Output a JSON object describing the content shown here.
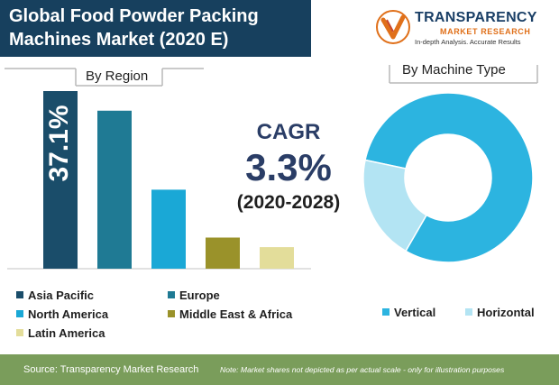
{
  "title": {
    "line1": "Global Food Powder Packing",
    "line2": "Machines Market (2020 E)"
  },
  "logo": {
    "name": "TRANSPARENCY",
    "sub": "MARKET RESEARCH",
    "tagline": "In-depth Analysis. Accurate Results"
  },
  "colors": {
    "title_bg": "#17405e",
    "footer_bg": "#7a9d5b",
    "cagr_text": "#2a3d66"
  },
  "cagr": {
    "label": "CAGR",
    "value": "3.3%",
    "period": "(2020-2028)"
  },
  "chart_data": [
    {
      "type": "bar",
      "title": "By Region",
      "categories": [
        "Asia Pacific",
        "Europe",
        "North America",
        "Middle East & Africa",
        "Latin America"
      ],
      "values": [
        37.1,
        33.0,
        16.5,
        6.5,
        4.5
      ],
      "colors": [
        "#1a4d6a",
        "#1f7a94",
        "#1aa8d6",
        "#9a922a",
        "#e3dd9a"
      ],
      "data_labels": [
        "37.1%",
        "",
        "",
        "",
        ""
      ],
      "ylim": [
        0,
        37.1
      ],
      "grid": false
    },
    {
      "type": "pie",
      "title": "By Machine Type",
      "labels": [
        "Vertical",
        "Horizontal"
      ],
      "values": [
        80,
        20
      ],
      "colors": [
        "#2cb4e0",
        "#b3e4f3"
      ],
      "donut": true
    }
  ],
  "footer": {
    "source": "Source: Transparency Market Research",
    "note": "Note: Market shares not depicted as per actual scale - only for illustration purposes"
  }
}
